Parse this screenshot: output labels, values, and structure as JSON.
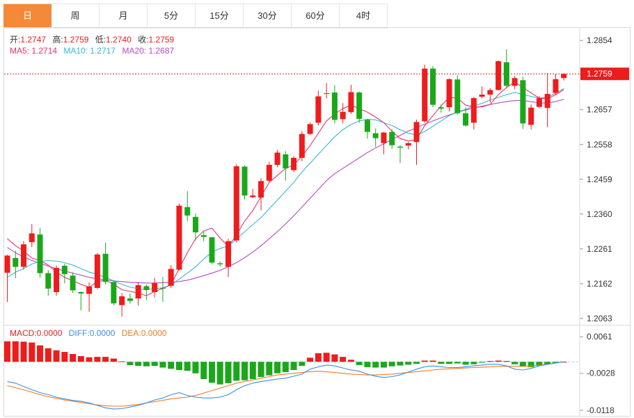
{
  "tabs": [
    {
      "label": "日",
      "active": true
    },
    {
      "label": "周",
      "active": false
    },
    {
      "label": "月",
      "active": false
    },
    {
      "label": "5分",
      "active": false
    },
    {
      "label": "15分",
      "active": false
    },
    {
      "label": "30分",
      "active": false
    },
    {
      "label": "60分",
      "active": false
    },
    {
      "label": "4时",
      "active": false
    }
  ],
  "ohlc_legend": {
    "open_label": "开:",
    "open_value": "1.2747",
    "high_label": "高:",
    "high_value": "1.2759",
    "low_label": "低:",
    "low_value": "1.2740",
    "close_label": "收:",
    "close_value": "1.2759"
  },
  "ma_legend": {
    "ma5_label": "MA5: ",
    "ma5_value": "1.2714",
    "ma10_label": "MA10: ",
    "ma10_value": "1.2717",
    "ma20_label": "MA20: ",
    "ma20_value": "1.2687"
  },
  "macd_legend": {
    "macd_label": "MACD:",
    "macd_value": "0.0000",
    "diff_label": "DIFF:",
    "diff_value": "0.0000",
    "dea_label": "DEA:",
    "dea_value": "0.0000"
  },
  "colors": {
    "up": "#ee1c1c",
    "down": "#1aa81a",
    "ma5": "#e8336a",
    "ma10": "#38b6d6",
    "ma20": "#b44bc5",
    "diff": "#3a8ee6",
    "dea": "#f07b1f",
    "price_line": "#ee1c1c",
    "price_tag": "#ee1c1c"
  },
  "chart_data": [
    {
      "type": "candlestick",
      "ylim": [
        1.2045,
        1.289
      ],
      "y_ticks": [
        "1.2854",
        "1.2757",
        "1.2657",
        "1.2558",
        "1.2459",
        "1.2360",
        "1.2261",
        "1.2162",
        "1.2063"
      ],
      "current_price": "1.2759",
      "candles": [
        [
          1.2193,
          1.2244,
          1.211,
          1.2242
        ],
        [
          1.2235,
          1.2256,
          1.2178,
          1.221
        ],
        [
          1.221,
          1.2283,
          1.2202,
          1.2274
        ],
        [
          1.228,
          1.2332,
          1.2266,
          1.2305
        ],
        [
          1.2302,
          1.232,
          1.2179,
          1.2192
        ],
        [
          1.2192,
          1.22,
          1.2128,
          1.2148
        ],
        [
          1.2138,
          1.2214,
          1.2128,
          1.2207
        ],
        [
          1.2213,
          1.2219,
          1.2163,
          1.2189
        ],
        [
          1.2185,
          1.2194,
          1.2136,
          1.2143
        ],
        [
          1.2138,
          1.214,
          1.2086,
          1.2134
        ],
        [
          1.2133,
          1.2166,
          1.2082,
          1.2154
        ],
        [
          1.215,
          1.2249,
          1.2147,
          1.2245
        ],
        [
          1.2247,
          1.2279,
          1.216,
          1.2167
        ],
        [
          1.2167,
          1.2171,
          1.2101,
          1.2106
        ],
        [
          1.2101,
          1.2135,
          1.2068,
          1.2126
        ],
        [
          1.212,
          1.2134,
          1.2105,
          1.2113
        ],
        [
          1.212,
          1.2167,
          1.21,
          1.2158
        ],
        [
          1.2155,
          1.216,
          1.2115,
          1.2144
        ],
        [
          1.2138,
          1.2179,
          1.2123,
          1.2164
        ],
        [
          1.215,
          1.2181,
          1.211,
          1.2149
        ],
        [
          1.2156,
          1.2215,
          1.215,
          1.2204
        ],
        [
          1.2202,
          1.239,
          1.22,
          1.2384
        ],
        [
          1.238,
          1.2425,
          1.234,
          1.2356
        ],
        [
          1.2352,
          1.2362,
          1.2285,
          1.2308
        ],
        [
          1.23,
          1.231,
          1.2283,
          1.2295
        ],
        [
          1.2294,
          1.2295,
          1.2218,
          1.2222
        ],
        [
          1.222,
          1.2225,
          1.2211,
          1.2217
        ],
        [
          1.221,
          1.229,
          1.2181,
          1.2283
        ],
        [
          1.2285,
          1.2502,
          1.2279,
          1.2496
        ],
        [
          1.2495,
          1.2499,
          1.2402,
          1.2413
        ],
        [
          1.2408,
          1.2432,
          1.2405,
          1.2413
        ],
        [
          1.2407,
          1.2462,
          1.2371,
          1.2454
        ],
        [
          1.2455,
          1.2509,
          1.245,
          1.25
        ],
        [
          1.25,
          1.2543,
          1.2493,
          1.2535
        ],
        [
          1.253,
          1.2539,
          1.2455,
          1.249
        ],
        [
          1.2485,
          1.2525,
          1.248,
          1.252
        ],
        [
          1.252,
          1.2596,
          1.251,
          1.2588
        ],
        [
          1.2588,
          1.2621,
          1.2585,
          1.2616
        ],
        [
          1.262,
          1.2711,
          1.2612,
          1.2695
        ],
        [
          1.2702,
          1.2733,
          1.2689,
          1.2704
        ],
        [
          1.2706,
          1.2727,
          1.2618,
          1.2628
        ],
        [
          1.263,
          1.2676,
          1.2618,
          1.2651
        ],
        [
          1.265,
          1.2728,
          1.2645,
          1.2707
        ],
        [
          1.2706,
          1.2709,
          1.262,
          1.2631
        ],
        [
          1.2628,
          1.2631,
          1.2575,
          1.2594
        ],
        [
          1.259,
          1.2604,
          1.2551,
          1.2576
        ],
        [
          1.2562,
          1.2594,
          1.253,
          1.2592
        ],
        [
          1.2594,
          1.2602,
          1.2545,
          1.2556
        ],
        [
          1.2552,
          1.2556,
          1.2505,
          1.2549
        ],
        [
          1.2555,
          1.2566,
          1.2544,
          1.2562
        ],
        [
          1.2565,
          1.2629,
          1.25,
          1.2622
        ],
        [
          1.2624,
          1.2785,
          1.262,
          1.2774
        ],
        [
          1.2774,
          1.2781,
          1.2664,
          1.2671
        ],
        [
          1.2664,
          1.2672,
          1.2649,
          1.266
        ],
        [
          1.2664,
          1.2746,
          1.2652,
          1.2744
        ],
        [
          1.2743,
          1.2755,
          1.2643,
          1.2647
        ],
        [
          1.2647,
          1.2664,
          1.2609,
          1.2612
        ],
        [
          1.262,
          1.2694,
          1.2601,
          1.269
        ],
        [
          1.2694,
          1.2723,
          1.2689,
          1.27
        ],
        [
          1.27,
          1.2719,
          1.2677,
          1.2713
        ],
        [
          1.2713,
          1.2797,
          1.2712,
          1.2795
        ],
        [
          1.2792,
          1.2829,
          1.272,
          1.2725
        ],
        [
          1.2725,
          1.2753,
          1.2715,
          1.2747
        ],
        [
          1.2741,
          1.2751,
          1.2602,
          1.2618
        ],
        [
          1.2614,
          1.2672,
          1.2601,
          1.2663
        ],
        [
          1.2665,
          1.2696,
          1.2662,
          1.269
        ],
        [
          1.2662,
          1.2761,
          1.2607,
          1.2702
        ],
        [
          1.2705,
          1.2759,
          1.2698,
          1.2744
        ],
        [
          1.2747,
          1.2759,
          1.274,
          1.2759
        ]
      ],
      "ma5": [
        1.229,
        1.227,
        1.2255,
        1.2235,
        1.2228,
        1.2215,
        1.2195,
        1.218,
        1.217,
        1.216,
        1.2152,
        1.2168,
        1.2172,
        1.216,
        1.2145,
        1.214,
        1.2135,
        1.2128,
        1.214,
        1.2148,
        1.216,
        1.2205,
        1.225,
        1.229,
        1.2312,
        1.232,
        1.2292,
        1.2268,
        1.23,
        1.234,
        1.237,
        1.241,
        1.245,
        1.247,
        1.249,
        1.25,
        1.2525,
        1.2555,
        1.259,
        1.2625,
        1.2645,
        1.266,
        1.267,
        1.266,
        1.265,
        1.2636,
        1.262,
        1.2596,
        1.2575,
        1.2568,
        1.2572,
        1.2612,
        1.264,
        1.2668,
        1.2692,
        1.269,
        1.267,
        1.2665,
        1.2665,
        1.2672,
        1.27,
        1.272,
        1.2736,
        1.272,
        1.2705,
        1.269,
        1.2688,
        1.27,
        1.2714
      ],
      "ma10": [
        1.218,
        1.2195,
        1.2205,
        1.2218,
        1.2225,
        1.2228,
        1.2226,
        1.2222,
        1.2215,
        1.2205,
        1.2195,
        1.2188,
        1.218,
        1.217,
        1.216,
        1.2152,
        1.2148,
        1.2145,
        1.2148,
        1.215,
        1.2158,
        1.2175,
        1.2192,
        1.221,
        1.2232,
        1.2252,
        1.2262,
        1.227,
        1.2288,
        1.231,
        1.233,
        1.235,
        1.2375,
        1.24,
        1.2425,
        1.245,
        1.248,
        1.2505,
        1.253,
        1.2555,
        1.258,
        1.26,
        1.2615,
        1.2625,
        1.263,
        1.2628,
        1.262,
        1.2612,
        1.26,
        1.259,
        1.2585,
        1.2595,
        1.261,
        1.2625,
        1.264,
        1.265,
        1.2658,
        1.2668,
        1.2675,
        1.2685,
        1.2692,
        1.27,
        1.2706,
        1.27,
        1.2695,
        1.269,
        1.2692,
        1.2705,
        1.2717
      ],
      "ma20": [
        1.2265,
        1.225,
        1.2238,
        1.2228,
        1.222,
        1.2212,
        1.2205,
        1.2198,
        1.2192,
        1.2186,
        1.218,
        1.2176,
        1.2173,
        1.217,
        1.2168,
        1.2166,
        1.2165,
        1.2164,
        1.2164,
        1.2165,
        1.2166,
        1.2168,
        1.2172,
        1.2178,
        1.2185,
        1.2192,
        1.22,
        1.221,
        1.2222,
        1.2236,
        1.2252,
        1.227,
        1.229,
        1.231,
        1.2332,
        1.2355,
        1.238,
        1.2405,
        1.243,
        1.2455,
        1.2475,
        1.249,
        1.2505,
        1.252,
        1.2535,
        1.2548,
        1.256,
        1.2572,
        1.2584,
        1.2596,
        1.2606,
        1.2616,
        1.2625,
        1.2634,
        1.2642,
        1.265,
        1.2656,
        1.2662,
        1.2667,
        1.2672,
        1.2676,
        1.268,
        1.2683,
        1.2683,
        1.268,
        1.2676,
        1.2676,
        1.268,
        1.2687
      ]
    },
    {
      "type": "macd",
      "ylim": [
        -0.013,
        0.0085
      ],
      "y_ticks": [
        "0.0061",
        "-0.0028",
        "-0.0118"
      ],
      "bars": [
        0.005,
        0.005,
        0.0049,
        0.0047,
        0.004,
        0.0033,
        0.0028,
        0.0024,
        0.0019,
        0.0014,
        0.0011,
        0.0012,
        0.0012,
        0.0008,
        0.0001,
        -0.0008,
        -0.001,
        -0.0011,
        -0.001,
        -0.0014,
        -0.0017,
        -0.002,
        -0.0022,
        -0.0028,
        -0.0042,
        -0.0051,
        -0.0055,
        -0.0052,
        -0.0046,
        -0.0045,
        -0.0042,
        -0.0037,
        -0.0033,
        -0.0028,
        -0.0025,
        -0.002,
        -0.001,
        0.001,
        0.0021,
        0.0022,
        0.0018,
        0.0012,
        0.0005,
        -0.0008,
        -0.0013,
        -0.0014,
        -0.0014,
        -0.0011,
        -0.0009,
        -0.0007,
        -0.0005,
        0.0003,
        0.0003,
        -0.0005,
        -0.0005,
        -0.0004,
        -0.0007,
        -0.0006,
        -0.0002,
        0.0002,
        0.0003,
        0.0002,
        -0.0006,
        -0.0012,
        -0.0013,
        -0.001,
        -0.0006,
        -0.0003,
        0.0
      ],
      "diff": [
        -0.0048,
        -0.0052,
        -0.006,
        -0.0068,
        -0.0075,
        -0.008,
        -0.0086,
        -0.009,
        -0.0094,
        -0.0096,
        -0.01,
        -0.0106,
        -0.0112,
        -0.0115,
        -0.0114,
        -0.011,
        -0.0106,
        -0.01,
        -0.0093,
        -0.0088,
        -0.008,
        -0.0075,
        -0.0082,
        -0.0086,
        -0.0088,
        -0.0088,
        -0.0086,
        -0.008,
        -0.0068,
        -0.0058,
        -0.0052,
        -0.0048,
        -0.0045,
        -0.0042,
        -0.004,
        -0.0035,
        -0.003,
        -0.0018,
        -0.0012,
        -0.0008,
        -0.001,
        -0.0015,
        -0.002,
        -0.0023,
        -0.003,
        -0.0035,
        -0.0038,
        -0.0036,
        -0.0032,
        -0.0025,
        -0.0018,
        -0.0012,
        -0.001,
        -0.0012,
        -0.0014,
        -0.0014,
        -0.0012,
        -0.001,
        -0.0008,
        -0.0006,
        -0.0006,
        -0.001,
        -0.0018,
        -0.002,
        -0.0016,
        -0.001,
        -0.0006,
        -0.0003,
        0.0
      ],
      "dea": [
        -0.0058,
        -0.0063,
        -0.0068,
        -0.0074,
        -0.008,
        -0.0085,
        -0.0089,
        -0.0093,
        -0.0096,
        -0.0099,
        -0.0102,
        -0.0105,
        -0.0107,
        -0.0108,
        -0.0108,
        -0.0106,
        -0.0104,
        -0.01,
        -0.0097,
        -0.0094,
        -0.009,
        -0.0088,
        -0.0086,
        -0.0082,
        -0.0076,
        -0.007,
        -0.0064,
        -0.0058,
        -0.0052,
        -0.0048,
        -0.0044,
        -0.004,
        -0.0036,
        -0.0032,
        -0.003,
        -0.0028,
        -0.0026,
        -0.0024,
        -0.0023,
        -0.0024,
        -0.0026,
        -0.0028,
        -0.003,
        -0.0031,
        -0.0032,
        -0.0032,
        -0.0031,
        -0.003,
        -0.0028,
        -0.0026,
        -0.0024,
        -0.0022,
        -0.002,
        -0.0018,
        -0.0017,
        -0.0016,
        -0.0015,
        -0.0014,
        -0.0013,
        -0.0012,
        -0.0011,
        -0.0011,
        -0.0011,
        -0.0011,
        -0.001,
        -0.0008,
        -0.0006,
        -0.0003,
        0.0
      ]
    }
  ]
}
